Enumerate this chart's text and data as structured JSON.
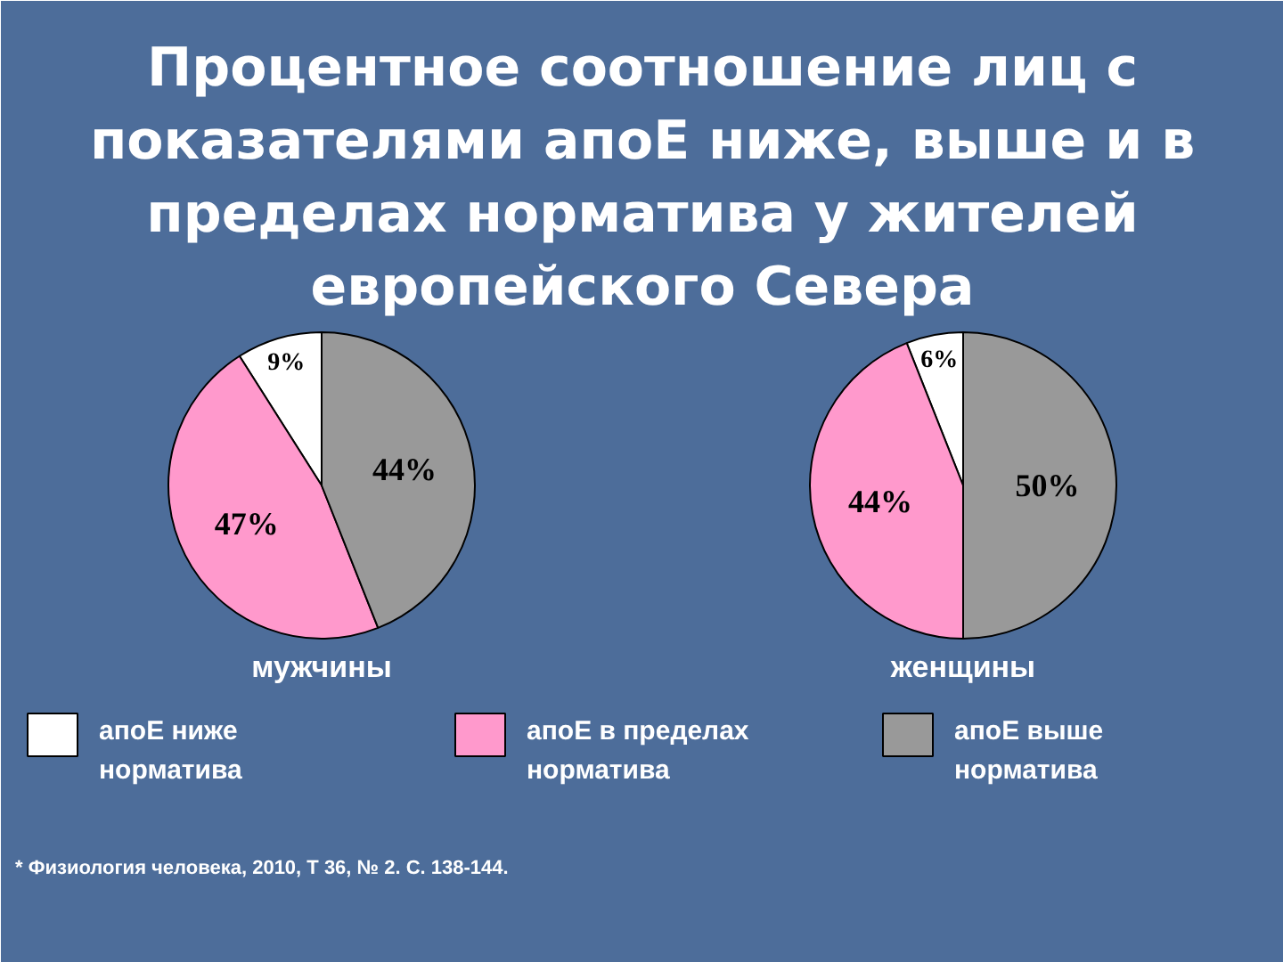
{
  "chart_data": {
    "type": "pie",
    "title": "Процентное соотношение лиц с показателями апоЕ ниже, выше и в пределах норматива у жителей европейского Севера",
    "categories": [
      "апоЕ ниже норматива",
      "апоЕ в пределах норматива",
      "апоЕ выше норматива"
    ],
    "colors": [
      "#ffffff",
      "#ff99cc",
      "#999999"
    ],
    "series": [
      {
        "name": "мужчины",
        "values": [
          9,
          47,
          44
        ],
        "value_labels": [
          "9%",
          "47%",
          "44%"
        ]
      },
      {
        "name": "женщины",
        "values": [
          6,
          44,
          50
        ],
        "value_labels": [
          "6%",
          "44%",
          "50%"
        ]
      }
    ],
    "legend": "bottom",
    "annotations": [
      "* Физиология человека, 2010, Т 36, № 2. С. 138-144."
    ]
  }
}
